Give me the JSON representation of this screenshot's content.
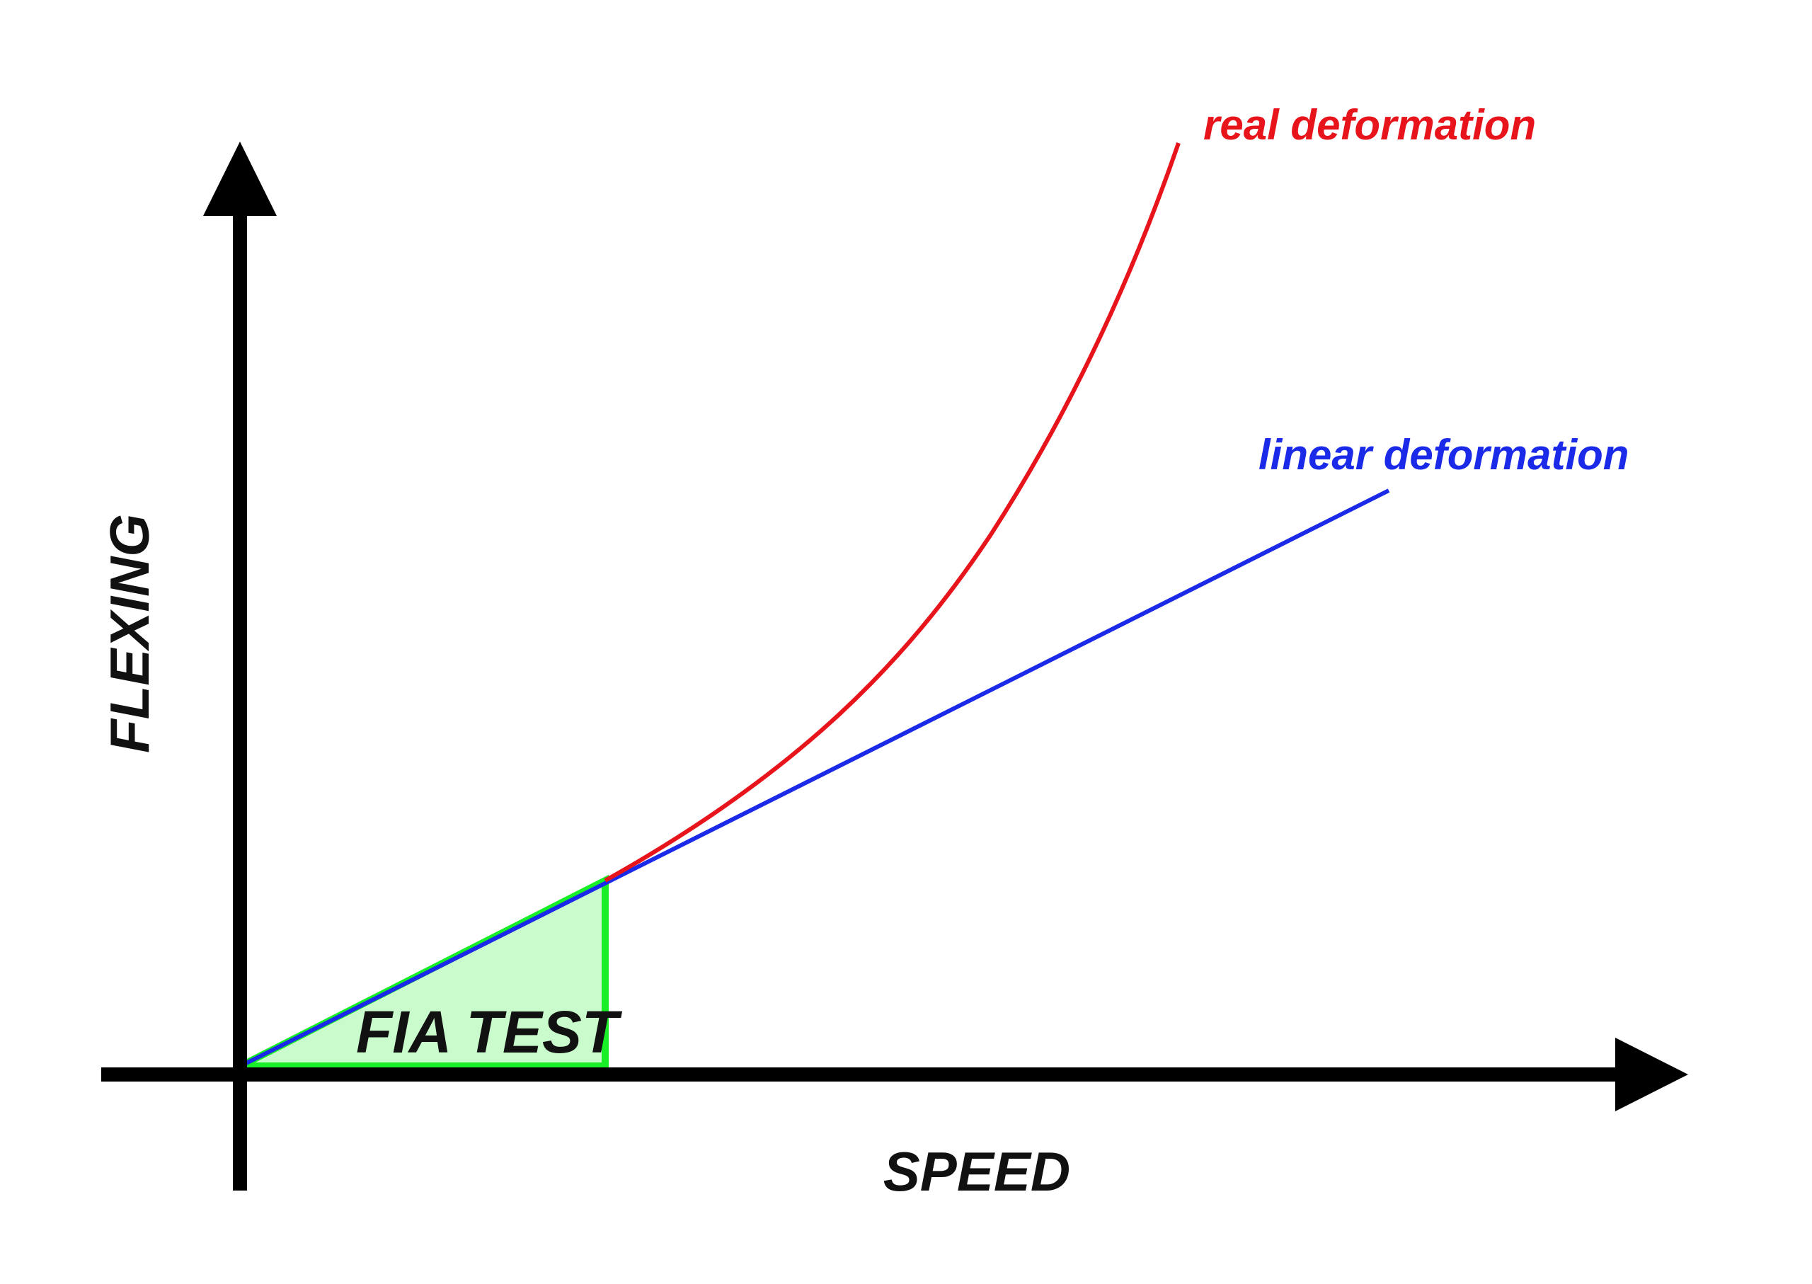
{
  "diagram": {
    "x_axis_label": "SPEED",
    "y_axis_label": "FLEXING",
    "region_label": "FIA TEST",
    "curves": {
      "real": {
        "label": "real deformation",
        "color": "#e8141b"
      },
      "linear": {
        "label": "linear deformation",
        "color": "#1a2ae8"
      }
    },
    "region": {
      "stroke_color": "#19ef27",
      "fill_color": "#c9fbcc"
    },
    "axis_color": "#000000"
  }
}
